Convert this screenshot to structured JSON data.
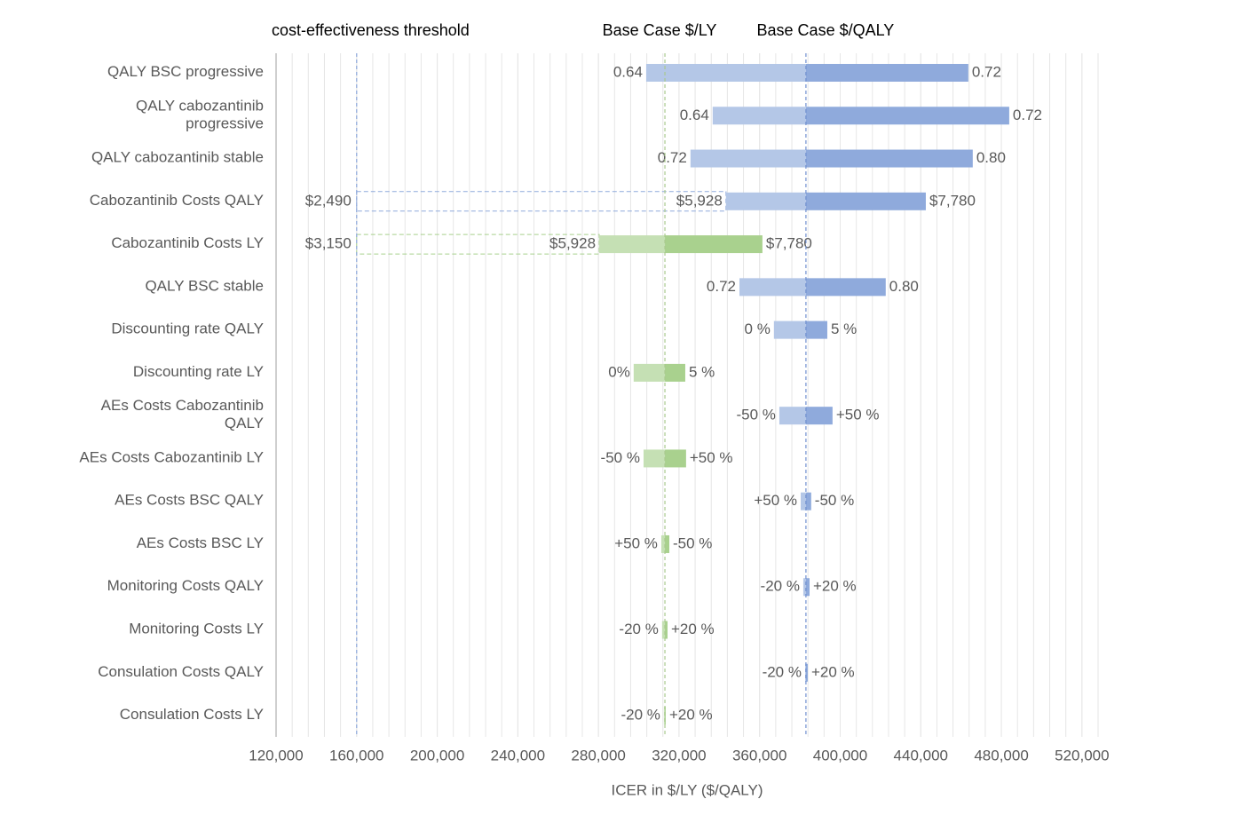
{
  "chart_data": {
    "type": "tornado",
    "x_label": "ICER in $/LY ($/QALY)",
    "xlim": [
      120000,
      528000
    ],
    "xticks": [
      {
        "value": 120000,
        "label": "120,000"
      },
      {
        "value": 160000,
        "label": "160,000"
      },
      {
        "value": 200000,
        "label": "200,000"
      },
      {
        "value": 240000,
        "label": "240,000"
      },
      {
        "value": 280000,
        "label": "280,000"
      },
      {
        "value": 320000,
        "label": "320,000"
      },
      {
        "value": 360000,
        "label": "360,000"
      },
      {
        "value": 400000,
        "label": "400,000"
      },
      {
        "value": 440000,
        "label": "440,000"
      },
      {
        "value": 480000,
        "label": "480,000"
      },
      {
        "value": 520000,
        "label": "520,000"
      }
    ],
    "minor_grid_step": 8000,
    "threshold": {
      "label": "cost-effectiveness threshold",
      "value": 160000,
      "color": "#8faadc"
    },
    "base_lines": [
      {
        "label": "Base Case $/LY",
        "value": 313000,
        "color": "#a9c98e"
      },
      {
        "label": "Base Case $/QALY",
        "value": 383000,
        "color": "#6f8fcf"
      }
    ],
    "colors": {
      "QALY": [
        "#b4c7e7",
        "#8faadc"
      ],
      "LY": [
        "#c5e0b4",
        "#a9d18e"
      ]
    },
    "rows": [
      {
        "label": [
          "QALY BSC progressive"
        ],
        "scale": "QALY",
        "low": 303700,
        "high": 463600,
        "low_text": "0.64",
        "high_text": "0.72"
      },
      {
        "label": [
          "QALY cabozantinib",
          "progressive"
        ],
        "scale": "QALY",
        "low": 336700,
        "high": 483900,
        "low_text": "0.64",
        "high_text": "0.72"
      },
      {
        "label": [
          "QALY cabozantinib stable"
        ],
        "scale": "QALY",
        "low": 325700,
        "high": 465800,
        "low_text": "0.72",
        "high_text": "0.80"
      },
      {
        "label": [
          "Cabozantinib Costs QALY"
        ],
        "scale": "QALY",
        "low": 343300,
        "high": 442500,
        "low_text": "$5,928",
        "high_text": "$7,780",
        "ext_text": "$2,490"
      },
      {
        "label": [
          "Cabozantinib Costs LY"
        ],
        "scale": "LY",
        "low": 280400,
        "high": 361400,
        "low_text": "$5,928",
        "high_text": "$7,780",
        "ext_text": "$3,150"
      },
      {
        "label": [
          "QALY BSC stable"
        ],
        "scale": "QALY",
        "low": 350000,
        "high": 422600,
        "low_text": "0.72",
        "high_text": "0.80"
      },
      {
        "label": [
          "Discounting rate QALY"
        ],
        "scale": "QALY",
        "low": 367100,
        "high": 393600,
        "low_text": "0 %",
        "high_text": "5 %"
      },
      {
        "label": [
          "Discounting rate LY"
        ],
        "scale": "LY",
        "low": 297500,
        "high": 323100,
        "low_text": "0%",
        "high_text": "5 %"
      },
      {
        "label": [
          "AEs Costs Cabozantinib",
          "QALY"
        ],
        "scale": "QALY",
        "low": 369800,
        "high": 396200,
        "low_text": "-50 %",
        "high_text": "+50 %"
      },
      {
        "label": [
          "AEs Costs Cabozantinib LY"
        ],
        "scale": "LY",
        "low": 302400,
        "high": 323500,
        "low_text": "-50 %",
        "high_text": "+50 %"
      },
      {
        "label": [
          "AEs Costs BSC QALY"
        ],
        "scale": "QALY",
        "low": 380400,
        "high": 385600,
        "low_text": "+50 %",
        "high_text": "-50 %"
      },
      {
        "label": [
          "AEs Costs BSC LY"
        ],
        "scale": "LY",
        "low": 311200,
        "high": 315200,
        "low_text": "+50 %",
        "high_text": "-50 %"
      },
      {
        "label": [
          "Monitoring Costs QALY"
        ],
        "scale": "QALY",
        "low": 381700,
        "high": 384800,
        "low_text": "-20 %",
        "high_text": "+20 %"
      },
      {
        "label": [
          "Monitoring Costs LY"
        ],
        "scale": "LY",
        "low": 311600,
        "high": 314300,
        "low_text": "-20 %",
        "high_text": "+20 %"
      },
      {
        "label": [
          "Consulation Costs QALY"
        ],
        "scale": "QALY",
        "low": 382600,
        "high": 383900,
        "low_text": "-20 %",
        "high_text": "+20 %"
      },
      {
        "label": [
          "Consulation Costs LY"
        ],
        "scale": "LY",
        "low": 312500,
        "high": 313400,
        "low_text": "-20 %",
        "high_text": "+20 %"
      }
    ]
  }
}
